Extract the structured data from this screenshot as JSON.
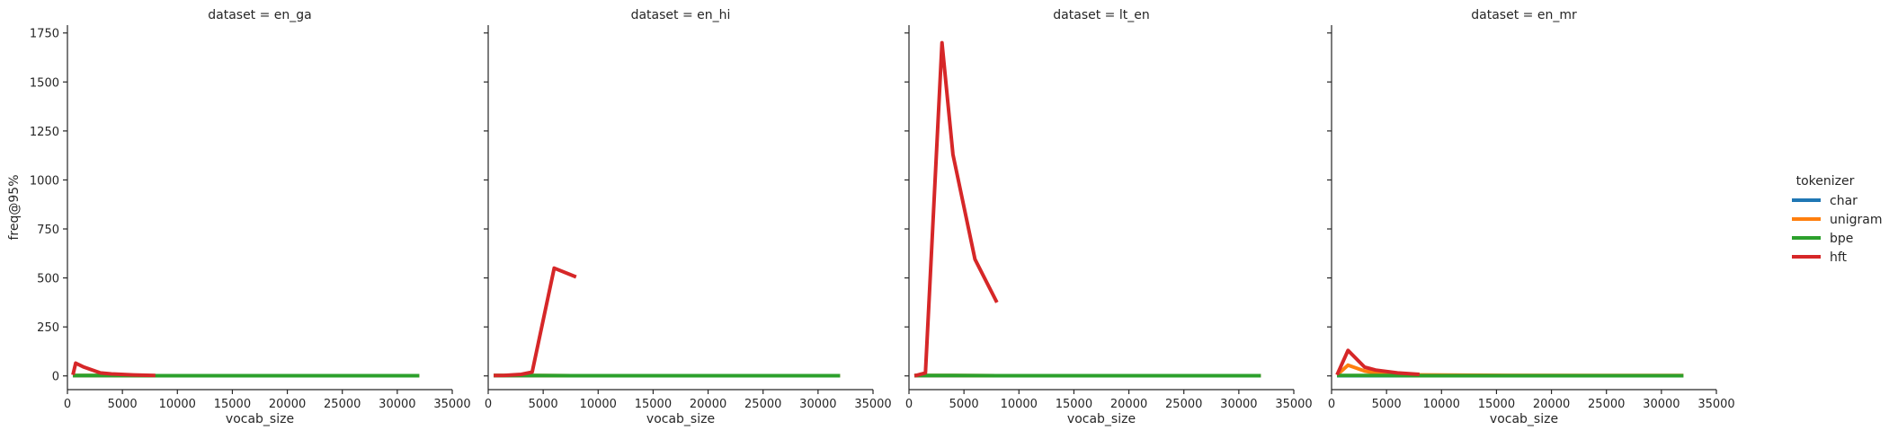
{
  "figure": {
    "legend": {
      "title": "tokenizer",
      "placement": "right",
      "entries": [
        {
          "label": "char",
          "color": "#1f77b4"
        },
        {
          "label": "unigram",
          "color": "#ff7f0e"
        },
        {
          "label": "bpe",
          "color": "#2ca02c"
        },
        {
          "label": "hft",
          "color": "#d62728"
        }
      ]
    }
  },
  "chart_data": [
    {
      "type": "line",
      "title": "dataset = en_ga",
      "xlabel": "vocab_size",
      "ylabel": "freq@95%",
      "xlim": [
        0,
        35000
      ],
      "ylim": [
        -70,
        1790
      ],
      "xticks": [
        0,
        5000,
        10000,
        15000,
        20000,
        25000,
        30000,
        35000
      ],
      "yticks": [
        0,
        250,
        500,
        750,
        1000,
        1250,
        1500,
        1750
      ],
      "show_ylabel": true,
      "show_ytick_labels": true,
      "grid": false,
      "series": [
        {
          "name": "char",
          "color": "#1f77b4",
          "x": [
            500,
            1000,
            2000,
            4000,
            8000,
            16000,
            32000
          ],
          "y": [
            1,
            1,
            1,
            1,
            1,
            1,
            1
          ]
        },
        {
          "name": "unigram",
          "color": "#ff7f0e",
          "x": [
            500,
            1000,
            2000,
            4000,
            8000,
            16000,
            32000
          ],
          "y": [
            2,
            2,
            2,
            2,
            1,
            1,
            1
          ]
        },
        {
          "name": "bpe",
          "color": "#2ca02c",
          "x": [
            500,
            1000,
            2000,
            4000,
            8000,
            16000,
            32000
          ],
          "y": [
            2,
            2,
            2,
            2,
            1,
            1,
            1
          ]
        },
        {
          "name": "hft",
          "color": "#d62728",
          "x": [
            500,
            750,
            1500,
            3000,
            4000,
            6000,
            8000
          ],
          "y": [
            5,
            65,
            45,
            15,
            10,
            5,
            2
          ]
        }
      ]
    },
    {
      "type": "line",
      "title": "dataset = en_hi",
      "xlabel": "vocab_size",
      "ylabel": "",
      "xlim": [
        0,
        35000
      ],
      "ylim": [
        -70,
        1790
      ],
      "xticks": [
        0,
        5000,
        10000,
        15000,
        20000,
        25000,
        30000,
        35000
      ],
      "yticks": [
        0,
        250,
        500,
        750,
        1000,
        1250,
        1500,
        1750
      ],
      "show_ylabel": false,
      "show_ytick_labels": false,
      "grid": false,
      "series": [
        {
          "name": "char",
          "color": "#1f77b4",
          "x": [
            500,
            1000,
            2000,
            4000,
            8000,
            16000,
            32000
          ],
          "y": [
            1,
            1,
            1,
            1,
            1,
            1,
            1
          ]
        },
        {
          "name": "unigram",
          "color": "#ff7f0e",
          "x": [
            500,
            1000,
            2000,
            4000,
            8000,
            16000,
            32000
          ],
          "y": [
            2,
            2,
            2,
            2,
            1,
            1,
            1
          ]
        },
        {
          "name": "bpe",
          "color": "#2ca02c",
          "x": [
            500,
            1000,
            2000,
            4000,
            8000,
            16000,
            32000
          ],
          "y": [
            2,
            2,
            2,
            2,
            1,
            1,
            1
          ]
        },
        {
          "name": "hft",
          "color": "#d62728",
          "x": [
            500,
            1500,
            3000,
            4000,
            6000,
            8000
          ],
          "y": [
            2,
            3,
            8,
            20,
            550,
            505
          ]
        }
      ]
    },
    {
      "type": "line",
      "title": "dataset = lt_en",
      "xlabel": "vocab_size",
      "ylabel": "",
      "xlim": [
        0,
        35000
      ],
      "ylim": [
        -70,
        1790
      ],
      "xticks": [
        0,
        5000,
        10000,
        15000,
        20000,
        25000,
        30000,
        35000
      ],
      "yticks": [
        0,
        250,
        500,
        750,
        1000,
        1250,
        1500,
        1750
      ],
      "show_ylabel": false,
      "show_ytick_labels": false,
      "grid": false,
      "series": [
        {
          "name": "char",
          "color": "#1f77b4",
          "x": [
            500,
            1000,
            2000,
            4000,
            8000,
            16000,
            32000
          ],
          "y": [
            1,
            1,
            1,
            1,
            1,
            1,
            1
          ]
        },
        {
          "name": "unigram",
          "color": "#ff7f0e",
          "x": [
            500,
            1000,
            2000,
            4000,
            8000,
            16000,
            32000
          ],
          "y": [
            2,
            2,
            2,
            2,
            1,
            1,
            1
          ]
        },
        {
          "name": "bpe",
          "color": "#2ca02c",
          "x": [
            500,
            1000,
            2000,
            4000,
            8000,
            16000,
            32000
          ],
          "y": [
            2,
            2,
            2,
            2,
            1,
            1,
            1
          ]
        },
        {
          "name": "hft",
          "color": "#d62728",
          "x": [
            500,
            1500,
            3000,
            4000,
            6000,
            8000
          ],
          "y": [
            0,
            15,
            1700,
            1130,
            595,
            375
          ]
        }
      ]
    },
    {
      "type": "line",
      "title": "dataset = en_mr",
      "xlabel": "vocab_size",
      "ylabel": "",
      "xlim": [
        0,
        35000
      ],
      "ylim": [
        -70,
        1790
      ],
      "xticks": [
        0,
        5000,
        10000,
        15000,
        20000,
        25000,
        30000,
        35000
      ],
      "yticks": [
        0,
        250,
        500,
        750,
        1000,
        1250,
        1500,
        1750
      ],
      "show_ylabel": false,
      "show_ytick_labels": false,
      "grid": false,
      "series": [
        {
          "name": "char",
          "color": "#1f77b4",
          "x": [
            500,
            1000,
            2000,
            4000,
            8000,
            16000,
            32000
          ],
          "y": [
            1,
            1,
            1,
            1,
            1,
            1,
            1
          ]
        },
        {
          "name": "unigram",
          "color": "#ff7f0e",
          "x": [
            500,
            1500,
            3000,
            4000,
            6000,
            8000,
            16000,
            32000
          ],
          "y": [
            5,
            55,
            25,
            15,
            8,
            5,
            3,
            2
          ]
        },
        {
          "name": "bpe",
          "color": "#2ca02c",
          "x": [
            500,
            1000,
            2000,
            4000,
            8000,
            16000,
            32000
          ],
          "y": [
            2,
            2,
            2,
            2,
            1,
            1,
            1
          ]
        },
        {
          "name": "hft",
          "color": "#d62728",
          "x": [
            500,
            1500,
            3000,
            4000,
            6000,
            8000
          ],
          "y": [
            5,
            130,
            45,
            30,
            15,
            8
          ]
        }
      ]
    }
  ]
}
